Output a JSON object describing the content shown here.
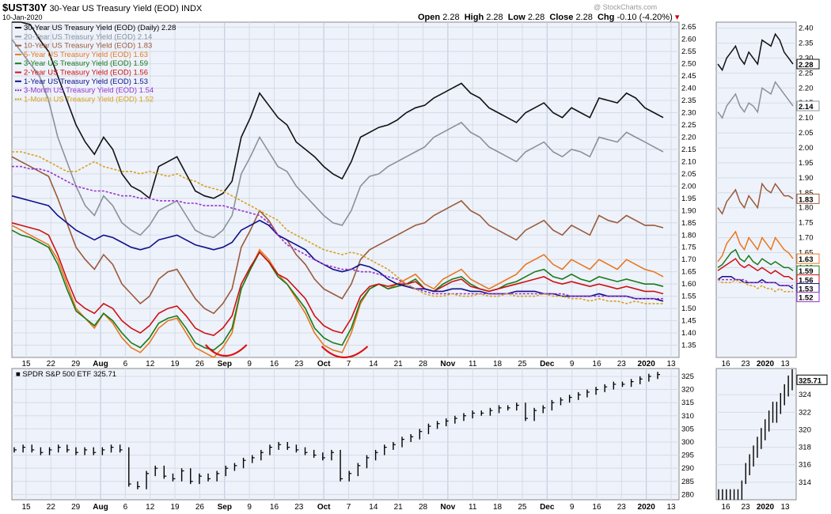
{
  "header": {
    "symbol": "$UST30Y",
    "description": "30-Year US Treasury Yield (EOD)",
    "exchange": "INDX",
    "date": "10-Jan-2020",
    "open_label": "Open",
    "open": "2.28",
    "high_label": "High",
    "high": "2.28",
    "low_label": "Low",
    "low": "2.28",
    "close_label": "Close",
    "close": "2.28",
    "chg_label": "Chg",
    "chg": "-0.10 (-4.20%)",
    "watermark": "@ StockCharts.com"
  },
  "colors": {
    "panel_bg": "#eef2fa",
    "grid": "#d5dce8",
    "annotation": "#dd1111"
  },
  "chart_data": [
    {
      "type": "line",
      "panel": "top",
      "ylim": [
        1.3,
        2.67
      ],
      "yticks": [
        1.35,
        1.4,
        1.45,
        1.5,
        1.55,
        1.6,
        1.65,
        1.7,
        1.75,
        1.8,
        1.85,
        1.9,
        1.95,
        2.0,
        2.05,
        2.1,
        2.15,
        2.2,
        2.25,
        2.3,
        2.35,
        2.4,
        2.45,
        2.5,
        2.55,
        2.6,
        2.65
      ],
      "xlabels": [
        "15",
        "22",
        "29",
        "Aug",
        "6",
        "12",
        "19",
        "26",
        "Sep",
        "9",
        "16",
        "23",
        "Oct",
        "7",
        "14",
        "21",
        "28",
        "Nov",
        "11",
        "18",
        "25",
        "Dec",
        "9",
        "16",
        "23",
        "2020",
        "13"
      ],
      "xlabel_months": [
        "Aug",
        "Sep",
        "Oct",
        "Nov",
        "Dec",
        "2020"
      ],
      "x_range": "15-Jul-2019 to 13-Jan-2020",
      "series": [
        {
          "name": "30-Year US Treasury Yield (EOD) (Daily)",
          "last": "2.28",
          "color": "#111111",
          "values": [
            2.72,
            2.7,
            2.66,
            2.6,
            2.55,
            2.45,
            2.35,
            2.25,
            2.18,
            2.13,
            2.2,
            2.15,
            2.05,
            2.0,
            1.98,
            1.95,
            2.08,
            2.1,
            2.12,
            2.05,
            1.98,
            1.96,
            1.95,
            1.97,
            2.02,
            2.2,
            2.28,
            2.38,
            2.33,
            2.28,
            2.25,
            2.18,
            2.15,
            2.12,
            2.08,
            2.05,
            2.03,
            2.1,
            2.2,
            2.22,
            2.24,
            2.25,
            2.27,
            2.3,
            2.32,
            2.33,
            2.36,
            2.38,
            2.4,
            2.42,
            2.38,
            2.36,
            2.32,
            2.3,
            2.28,
            2.26,
            2.3,
            2.32,
            2.34,
            2.3,
            2.28,
            2.32,
            2.3,
            2.28,
            2.36,
            2.35,
            2.34,
            2.38,
            2.36,
            2.32,
            2.3,
            2.28
          ]
        },
        {
          "name": "20-Year US Treasury Yield (EOD)",
          "last": "2.14",
          "color": "#8a9299",
          "values": [
            2.6,
            2.55,
            2.5,
            2.45,
            2.35,
            2.2,
            2.1,
            2.0,
            1.92,
            1.88,
            1.96,
            1.92,
            1.85,
            1.82,
            1.8,
            1.84,
            1.9,
            1.92,
            1.94,
            1.88,
            1.82,
            1.8,
            1.79,
            1.82,
            1.88,
            2.05,
            2.12,
            2.2,
            2.14,
            2.08,
            2.06,
            2.0,
            1.96,
            1.92,
            1.88,
            1.85,
            1.84,
            1.9,
            2.0,
            2.04,
            2.05,
            2.08,
            2.1,
            2.12,
            2.14,
            2.16,
            2.2,
            2.22,
            2.24,
            2.26,
            2.22,
            2.2,
            2.16,
            2.14,
            2.12,
            2.1,
            2.14,
            2.16,
            2.18,
            2.14,
            2.12,
            2.15,
            2.14,
            2.12,
            2.2,
            2.19,
            2.18,
            2.22,
            2.2,
            2.18,
            2.16,
            2.14
          ]
        },
        {
          "name": "10-Year US Treasury Yield (EOD)",
          "last": "1.83",
          "color": "#9a5a3a",
          "values": [
            2.12,
            2.1,
            2.08,
            2.06,
            2.04,
            1.95,
            1.85,
            1.75,
            1.7,
            1.66,
            1.72,
            1.68,
            1.6,
            1.56,
            1.52,
            1.55,
            1.62,
            1.65,
            1.66,
            1.6,
            1.54,
            1.5,
            1.48,
            1.52,
            1.58,
            1.75,
            1.82,
            1.9,
            1.86,
            1.8,
            1.78,
            1.72,
            1.68,
            1.62,
            1.58,
            1.56,
            1.54,
            1.6,
            1.7,
            1.74,
            1.76,
            1.78,
            1.8,
            1.82,
            1.84,
            1.85,
            1.88,
            1.9,
            1.92,
            1.94,
            1.9,
            1.88,
            1.84,
            1.82,
            1.8,
            1.78,
            1.82,
            1.84,
            1.86,
            1.82,
            1.8,
            1.84,
            1.82,
            1.8,
            1.88,
            1.86,
            1.85,
            1.88,
            1.86,
            1.84,
            1.84,
            1.83
          ]
        },
        {
          "name": "5-Year US Treasury Yield (EOD)",
          "last": "1.63",
          "color": "#e87820",
          "values": [
            1.84,
            1.82,
            1.8,
            1.78,
            1.76,
            1.7,
            1.6,
            1.5,
            1.46,
            1.42,
            1.48,
            1.44,
            1.38,
            1.34,
            1.32,
            1.36,
            1.42,
            1.45,
            1.46,
            1.4,
            1.34,
            1.32,
            1.3,
            1.34,
            1.4,
            1.58,
            1.66,
            1.74,
            1.7,
            1.64,
            1.6,
            1.54,
            1.48,
            1.4,
            1.35,
            1.33,
            1.32,
            1.4,
            1.52,
            1.58,
            1.6,
            1.58,
            1.6,
            1.62,
            1.64,
            1.6,
            1.58,
            1.62,
            1.64,
            1.66,
            1.62,
            1.6,
            1.58,
            1.6,
            1.62,
            1.64,
            1.68,
            1.7,
            1.72,
            1.68,
            1.66,
            1.7,
            1.68,
            1.66,
            1.7,
            1.68,
            1.66,
            1.7,
            1.68,
            1.66,
            1.65,
            1.63
          ]
        },
        {
          "name": "3-Year US Treasury Yield (EOD)",
          "last": "1.59",
          "color": "#1a7a1a",
          "values": [
            1.82,
            1.8,
            1.79,
            1.77,
            1.75,
            1.68,
            1.58,
            1.49,
            1.46,
            1.43,
            1.48,
            1.45,
            1.4,
            1.36,
            1.34,
            1.38,
            1.44,
            1.46,
            1.47,
            1.42,
            1.36,
            1.34,
            1.33,
            1.36,
            1.42,
            1.58,
            1.66,
            1.73,
            1.69,
            1.63,
            1.6,
            1.55,
            1.5,
            1.42,
            1.38,
            1.36,
            1.35,
            1.42,
            1.53,
            1.58,
            1.6,
            1.58,
            1.59,
            1.6,
            1.62,
            1.58,
            1.57,
            1.6,
            1.62,
            1.63,
            1.6,
            1.58,
            1.57,
            1.58,
            1.6,
            1.61,
            1.63,
            1.65,
            1.66,
            1.63,
            1.62,
            1.64,
            1.62,
            1.61,
            1.63,
            1.62,
            1.61,
            1.62,
            1.61,
            1.6,
            1.6,
            1.59
          ]
        },
        {
          "name": "2-Year US Treasury Yield (EOD)",
          "last": "1.56",
          "color": "#cc1111",
          "values": [
            1.85,
            1.84,
            1.83,
            1.82,
            1.8,
            1.72,
            1.62,
            1.53,
            1.5,
            1.48,
            1.52,
            1.5,
            1.45,
            1.42,
            1.4,
            1.43,
            1.48,
            1.5,
            1.51,
            1.47,
            1.42,
            1.4,
            1.39,
            1.42,
            1.47,
            1.6,
            1.67,
            1.73,
            1.69,
            1.64,
            1.62,
            1.58,
            1.54,
            1.47,
            1.43,
            1.41,
            1.4,
            1.46,
            1.55,
            1.59,
            1.6,
            1.59,
            1.6,
            1.6,
            1.61,
            1.58,
            1.57,
            1.59,
            1.61,
            1.62,
            1.59,
            1.58,
            1.57,
            1.58,
            1.59,
            1.6,
            1.61,
            1.62,
            1.63,
            1.61,
            1.6,
            1.61,
            1.6,
            1.59,
            1.6,
            1.59,
            1.58,
            1.59,
            1.58,
            1.57,
            1.57,
            1.56
          ]
        },
        {
          "name": "1-Year US Treasury Yield (EOD)",
          "last": "1.53",
          "color": "#10108a",
          "values": [
            1.96,
            1.95,
            1.94,
            1.93,
            1.92,
            1.88,
            1.85,
            1.82,
            1.8,
            1.78,
            1.8,
            1.79,
            1.77,
            1.75,
            1.74,
            1.75,
            1.78,
            1.79,
            1.8,
            1.78,
            1.76,
            1.75,
            1.74,
            1.75,
            1.77,
            1.82,
            1.84,
            1.86,
            1.84,
            1.8,
            1.78,
            1.76,
            1.74,
            1.7,
            1.68,
            1.66,
            1.65,
            1.66,
            1.68,
            1.67,
            1.65,
            1.62,
            1.6,
            1.59,
            1.58,
            1.58,
            1.57,
            1.57,
            1.58,
            1.58,
            1.57,
            1.57,
            1.56,
            1.56,
            1.56,
            1.57,
            1.57,
            1.57,
            1.56,
            1.56,
            1.55,
            1.55,
            1.55,
            1.55,
            1.56,
            1.55,
            1.55,
            1.55,
            1.54,
            1.54,
            1.54,
            1.53
          ]
        },
        {
          "name": "3-Month US Treasury Yield (EOD)",
          "last": "1.54",
          "color": "#9933cc",
          "dashed": true,
          "values": [
            2.08,
            2.08,
            2.07,
            2.07,
            2.06,
            2.04,
            2.02,
            2.0,
            1.99,
            1.98,
            1.98,
            1.97,
            1.96,
            1.96,
            1.95,
            1.95,
            1.94,
            1.94,
            1.94,
            1.93,
            1.93,
            1.92,
            1.92,
            1.92,
            1.91,
            1.9,
            1.89,
            1.88,
            1.85,
            1.8,
            1.76,
            1.74,
            1.72,
            1.7,
            1.68,
            1.67,
            1.66,
            1.66,
            1.65,
            1.65,
            1.64,
            1.63,
            1.62,
            1.6,
            1.58,
            1.57,
            1.56,
            1.56,
            1.56,
            1.56,
            1.56,
            1.56,
            1.56,
            1.56,
            1.56,
            1.56,
            1.56,
            1.56,
            1.56,
            1.56,
            1.56,
            1.55,
            1.55,
            1.55,
            1.55,
            1.55,
            1.55,
            1.55,
            1.54,
            1.54,
            1.54,
            1.54
          ]
        },
        {
          "name": "1-Month US Treasury Yield (EOD)",
          "last": "1.52",
          "color": "#d9a020",
          "dashed": true,
          "values": [
            2.14,
            2.14,
            2.13,
            2.12,
            2.1,
            2.08,
            2.06,
            2.06,
            2.08,
            2.1,
            2.08,
            2.07,
            2.06,
            2.06,
            2.05,
            2.06,
            2.05,
            2.04,
            2.05,
            2.03,
            2.02,
            2.0,
            1.99,
            1.98,
            1.96,
            1.94,
            1.92,
            1.9,
            1.88,
            1.86,
            1.82,
            1.8,
            1.78,
            1.76,
            1.74,
            1.73,
            1.72,
            1.73,
            1.72,
            1.7,
            1.68,
            1.66,
            1.63,
            1.6,
            1.58,
            1.56,
            1.55,
            1.55,
            1.56,
            1.55,
            1.55,
            1.56,
            1.55,
            1.55,
            1.56,
            1.55,
            1.55,
            1.55,
            1.56,
            1.55,
            1.55,
            1.54,
            1.54,
            1.53,
            1.54,
            1.53,
            1.53,
            1.52,
            1.53,
            1.52,
            1.52,
            1.52
          ]
        }
      ]
    },
    {
      "type": "ohlc",
      "panel": "bottom",
      "series_name": "SPDR S&P 500 ETF",
      "last": "325.71",
      "ylim": [
        278,
        328
      ],
      "yticks": [
        280,
        285,
        290,
        295,
        300,
        305,
        310,
        315,
        320,
        325
      ],
      "xlabels": [
        "15",
        "22",
        "29",
        "Aug",
        "6",
        "12",
        "19",
        "26",
        "Sep",
        "9",
        "16",
        "23",
        "Oct",
        "7",
        "14",
        "21",
        "28",
        "Nov",
        "11",
        "18",
        "25",
        "Dec",
        "9",
        "16",
        "23",
        "2020",
        "13"
      ],
      "values": [
        297,
        298,
        297,
        296,
        297,
        298,
        297,
        296,
        297,
        296,
        297,
        298,
        297,
        284,
        283,
        288,
        290,
        287,
        286,
        289,
        285,
        287,
        286,
        288,
        290,
        291,
        293,
        294,
        296,
        298,
        299,
        298,
        297,
        296,
        295,
        294,
        296,
        286,
        288,
        291,
        294,
        296,
        298,
        299,
        301,
        302,
        304,
        306,
        307,
        308,
        309,
        310,
        311,
        311,
        312,
        313,
        313,
        314,
        309,
        312,
        313,
        315,
        316,
        317,
        318,
        319,
        320,
        321,
        322,
        322,
        323,
        324,
        325,
        325.71
      ]
    },
    {
      "type": "line",
      "panel": "top-right-zoom",
      "ylim": [
        1.3,
        2.42
      ],
      "yticks": [
        1.5,
        1.55,
        1.6,
        1.65,
        1.7,
        1.75,
        1.8,
        1.85,
        1.9,
        1.95,
        2.0,
        2.05,
        2.1,
        2.15,
        2.2,
        2.25,
        2.3,
        2.35,
        2.4
      ],
      "xlabels": [
        "16",
        "23",
        "2020",
        "13"
      ],
      "last_labels": [
        "2.28",
        "2.14",
        "1.83",
        "1.63",
        "1.59",
        "1.56",
        "1.53",
        "1.52"
      ]
    },
    {
      "type": "ohlc",
      "panel": "bottom-right-zoom",
      "ylim": [
        312,
        327
      ],
      "yticks": [
        314,
        316,
        318,
        320,
        322,
        324
      ],
      "xlabels": [
        "16",
        "23",
        "2020",
        "13"
      ],
      "last": "325.71"
    }
  ],
  "annotations": {
    "arcs": [
      "sep-low-arc",
      "oct-low-arc"
    ]
  }
}
